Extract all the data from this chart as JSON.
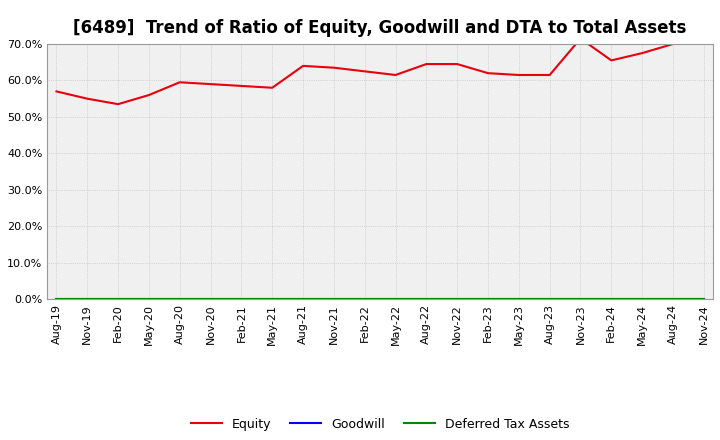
{
  "title": "[6489]  Trend of Ratio of Equity, Goodwill and DTA to Total Assets",
  "x_labels": [
    "Aug-19",
    "Nov-19",
    "Feb-20",
    "May-20",
    "Aug-20",
    "Nov-20",
    "Feb-21",
    "May-21",
    "Aug-21",
    "Nov-21",
    "Feb-22",
    "May-22",
    "Aug-22",
    "Nov-22",
    "Feb-23",
    "May-23",
    "Aug-23",
    "Nov-23",
    "Feb-24",
    "May-24",
    "Aug-24",
    "Nov-24"
  ],
  "equity": [
    57.0,
    55.0,
    53.5,
    56.0,
    59.5,
    59.0,
    58.5,
    58.0,
    64.0,
    63.5,
    62.5,
    61.5,
    64.5,
    64.5,
    62.0,
    61.5,
    61.5,
    71.5,
    65.5,
    67.5,
    70.0,
    70.5
  ],
  "goodwill": [
    0,
    0,
    0,
    0,
    0,
    0,
    0,
    0,
    0,
    0,
    0,
    0,
    0,
    0,
    0,
    0,
    0,
    0,
    0,
    0,
    0,
    0
  ],
  "dta": [
    0,
    0,
    0,
    0,
    0,
    0,
    0,
    0,
    0,
    0,
    0,
    0,
    0,
    0,
    0,
    0,
    0,
    0,
    0,
    0,
    0,
    0
  ],
  "equity_color": "#e8000d",
  "goodwill_color": "#0000ff",
  "dta_color": "#008800",
  "ylim": [
    0,
    70
  ],
  "yticks": [
    0.0,
    10.0,
    20.0,
    30.0,
    40.0,
    50.0,
    60.0,
    70.0
  ],
  "background_color": "#ffffff",
  "plot_bg_color": "#f0f0f0",
  "grid_color": "#bbbbbb",
  "title_fontsize": 12,
  "tick_fontsize": 8,
  "legend_fontsize": 9
}
